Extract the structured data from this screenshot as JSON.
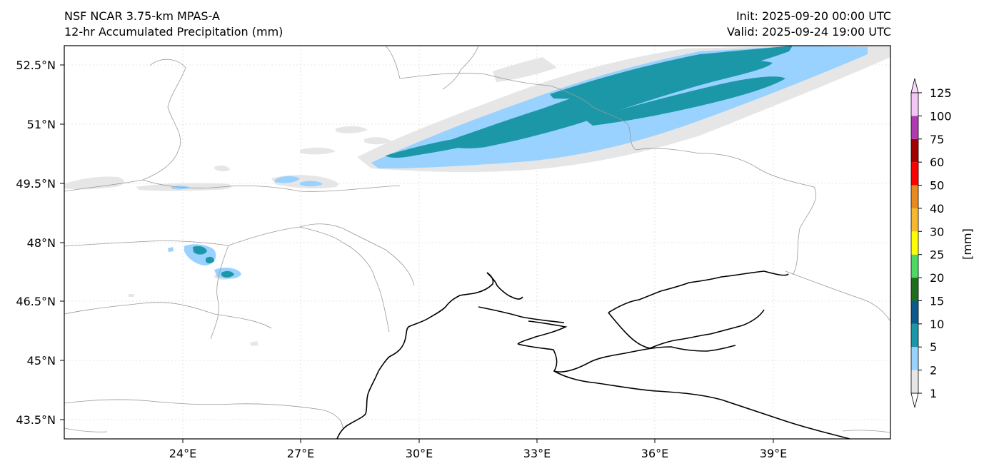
{
  "header": {
    "model": "NSF NCAR 3.75-km MPAS-A",
    "field": "12-hr Accumulated Precipitation (mm)",
    "init": "Init: 2025-09-20 00:00 UTC",
    "valid": "Valid: 2025-09-24 19:00 UTC"
  },
  "map": {
    "lat_labels": [
      "52.5°N",
      "51°N",
      "49.5°N",
      "48°N",
      "46.5°N",
      "45°N",
      "43.5°N"
    ],
    "lon_labels": [
      "24°E",
      "27°E",
      "30°E",
      "33°E",
      "36°E",
      "39°E"
    ]
  },
  "colorbar": {
    "unit_label": "[mm]",
    "levels": [
      "1",
      "2",
      "5",
      "10",
      "15",
      "20",
      "25",
      "30",
      "40",
      "50",
      "60",
      "75",
      "100",
      "125"
    ],
    "colors": [
      "#e6e6e6",
      "#99d1ff",
      "#1c97a8",
      "#0b5a8a",
      "#1e6e1e",
      "#4cd964",
      "#ffff00",
      "#f5b82e",
      "#e88a1e",
      "#ff0000",
      "#a30000",
      "#b03ab0",
      "#f2c6f5"
    ],
    "extend_color_low": "#ffffff",
    "extend_color_high": "#f8d8fb"
  },
  "style": {
    "light_precip": "#e6e6e6",
    "moderate_precip": "#99d1ff",
    "heavy_precip": "#1c97a8",
    "border_color": "#999999",
    "coast_color": "#000000"
  }
}
